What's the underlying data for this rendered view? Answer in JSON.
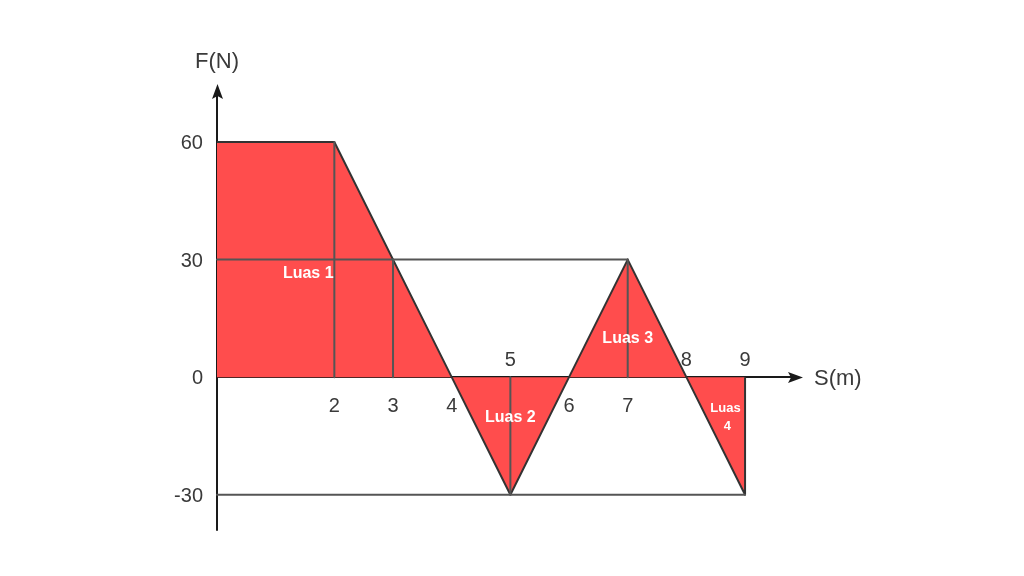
{
  "chart_data": {
    "type": "area",
    "xlabel": "S(m)",
    "ylabel": "F(N)",
    "xlim": [
      0,
      9.8
    ],
    "ylim": [
      -39,
      72
    ],
    "xticks": [
      2,
      3,
      4,
      6,
      7
    ],
    "x2lim": [
      0,
      9.8
    ],
    "x2ticks": [
      5,
      8,
      9
    ],
    "yticks": [
      -30,
      0,
      30,
      60
    ],
    "marker": "none",
    "series": [
      {
        "x": [
          0,
          2,
          4,
          5,
          6,
          7,
          8,
          9,
          9
        ],
        "values": [
          60,
          60,
          0,
          -30,
          0,
          30,
          0,
          -30,
          0
        ],
        "color": "#ff4d4d"
      },
      {
        "type": "line",
        "x": [
          2,
          2
        ],
        "values": [
          0,
          60
        ],
        "color": "#555555"
      },
      {
        "type": "line",
        "x": [
          3,
          3
        ],
        "values": [
          0,
          30
        ],
        "color": "#555555"
      },
      {
        "type": "line",
        "x": [
          0,
          7
        ],
        "values": [
          30,
          30
        ],
        "color": "#555555"
      },
      {
        "type": "line",
        "x": [
          5,
          5
        ],
        "values": [
          -30,
          0
        ],
        "color": "#555555"
      },
      {
        "type": "line",
        "x": [
          7,
          7
        ],
        "values": [
          0,
          30
        ],
        "color": "#555555"
      },
      {
        "type": "line",
        "x": [
          0,
          9
        ],
        "values": [
          -30,
          -30
        ],
        "color": "#555555"
      }
    ],
    "annotations": [
      "Luas 1",
      "Luas 2",
      "Luas 3",
      "Luas 4"
    ]
  }
}
